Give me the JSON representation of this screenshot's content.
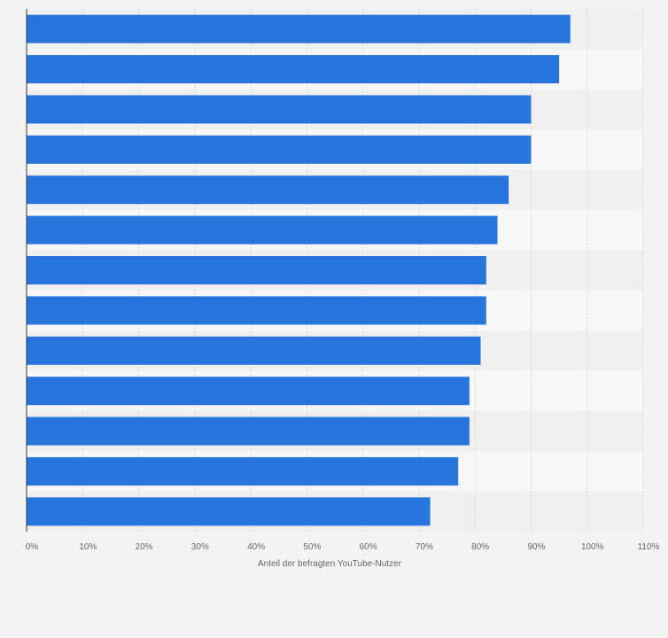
{
  "colors": {
    "background": "#f4f4f4",
    "plot_band_light": "#f7f7f7",
    "plot_band_dark": "#f0f0f0",
    "bar": "#2876dd",
    "grid": "#d6d6d6",
    "axis": "#333333",
    "text": "#666666"
  },
  "chart_data": {
    "type": "bar",
    "orientation": "horizontal",
    "categories": [
      "",
      "",
      "",
      "",
      "",
      "",
      "",
      "",
      "",
      "",
      "",
      "",
      ""
    ],
    "values": [
      97,
      95,
      90,
      90,
      86,
      84,
      82,
      82,
      81,
      79,
      79,
      77,
      72
    ],
    "xlabel": "Anteil der befragten YouTube-Nutzer",
    "ylabel": "",
    "xlim": [
      0,
      110
    ],
    "xticks": [
      0,
      10,
      20,
      30,
      40,
      50,
      60,
      70,
      80,
      90,
      100,
      110
    ],
    "xtick_labels": [
      "0%",
      "10%",
      "20%",
      "30%",
      "40%",
      "50%",
      "60%",
      "70%",
      "80%",
      "90%",
      "100%",
      "110%"
    ],
    "grid": true,
    "legend": "none"
  }
}
